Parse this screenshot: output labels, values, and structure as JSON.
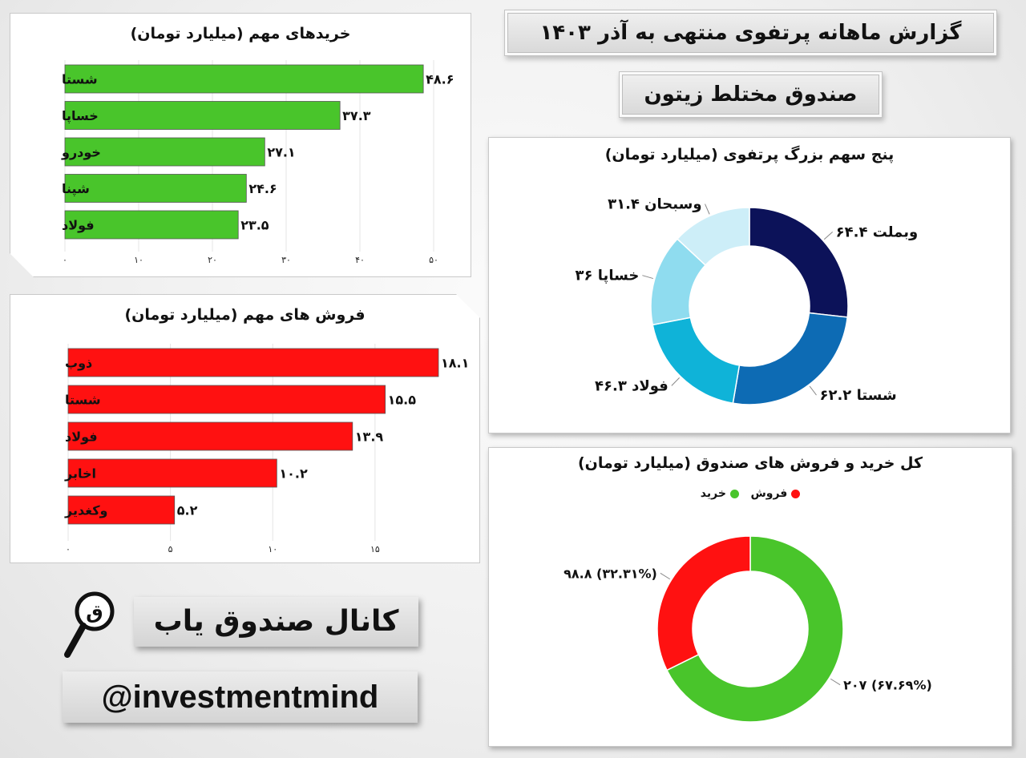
{
  "header": {
    "title": "گزارش ماهانه پرتفوی منتهی به آذر ۱۴۰۳",
    "subtitle": "صندوق مختلط زیتون"
  },
  "brand": {
    "channel": "کانال صندوق یاب",
    "handle": "@investmentmind",
    "icon": "magnifier-icon"
  },
  "colors": {
    "buy_green": "#49c52b",
    "sell_red": "#ff1111",
    "navy": "#0c1259",
    "blue": "#0d6bb4",
    "cyan": "#0fb3d8",
    "light_cyan": "#8fdcef",
    "pale_cyan": "#cdeef8"
  },
  "chart_data": [
    {
      "id": "buys",
      "type": "bar",
      "orientation": "horizontal",
      "title": "خریدهای مهم (میلیارد تومان)",
      "categories": [
        "شستا",
        "خساپا",
        "خودرو",
        "شپنا",
        "فولاد"
      ],
      "values": [
        48.6,
        37.3,
        27.1,
        24.6,
        23.5
      ],
      "value_labels": [
        "۴۸.۶",
        "۳۷.۳",
        "۲۷.۱",
        "۲۴.۶",
        "۲۳.۵"
      ],
      "xlim": [
        0,
        50
      ],
      "ticks": [
        0,
        10,
        20,
        30,
        40,
        50
      ],
      "tick_labels": [
        "۰",
        "۱۰",
        "۲۰",
        "۳۰",
        "۴۰",
        "۵۰"
      ],
      "color": "#49c52b"
    },
    {
      "id": "sells",
      "type": "bar",
      "orientation": "horizontal",
      "title": "فروش های مهم (میلیارد تومان)",
      "categories": [
        "ذوب",
        "شستا",
        "فولاد",
        "اخابر",
        "وکغدیر"
      ],
      "values": [
        18.1,
        15.5,
        13.9,
        10.2,
        5.2
      ],
      "value_labels": [
        "۱۸.۱",
        "۱۵.۵",
        "۱۳.۹",
        "۱۰.۲",
        "۵.۲"
      ],
      "xlim": [
        0,
        18.1
      ],
      "ticks": [
        0,
        5,
        10,
        15
      ],
      "tick_labels": [
        "۰",
        "۵",
        "۱۰",
        "۱۵"
      ],
      "color": "#ff1111"
    },
    {
      "id": "top5",
      "type": "pie",
      "donut": true,
      "title": "پنج سهم بزرگ پرتفوی (میلیارد تومان)",
      "slices": [
        {
          "name": "وبملت",
          "value": 64.4,
          "label": "۶۴.۴ وبملت",
          "color": "#0c1259"
        },
        {
          "name": "شستا",
          "value": 62.2,
          "label": "۶۲.۲ شستا",
          "color": "#0d6bb4"
        },
        {
          "name": "فولاد",
          "value": 46.3,
          "label": "۴۶.۳ فولاد",
          "color": "#0fb3d8"
        },
        {
          "name": "خساپا",
          "value": 36,
          "label": "۳۶ خساپا",
          "color": "#8fdcef"
        },
        {
          "name": "وسبحان",
          "value": 31.4,
          "label": "۳۱.۴ وسبحان",
          "color": "#cdeef8"
        }
      ]
    },
    {
      "id": "totals",
      "type": "pie",
      "donut": true,
      "title": "کل خرید و فروش های صندوق (میلیارد تومان)",
      "legend": [
        {
          "label": "فروش",
          "color": "#ff1111"
        },
        {
          "label": "خرید",
          "color": "#49c52b"
        }
      ],
      "legend_position": "top",
      "slices": [
        {
          "name": "خرید",
          "value": 207,
          "percent": 67.69,
          "label": "۲۰۷ (۶۷.۶۹%)",
          "color": "#49c52b"
        },
        {
          "name": "فروش",
          "value": 98.8,
          "percent": 32.31,
          "label": "۹۸.۸ (۳۲.۳۱%)",
          "color": "#ff1111"
        }
      ]
    }
  ]
}
